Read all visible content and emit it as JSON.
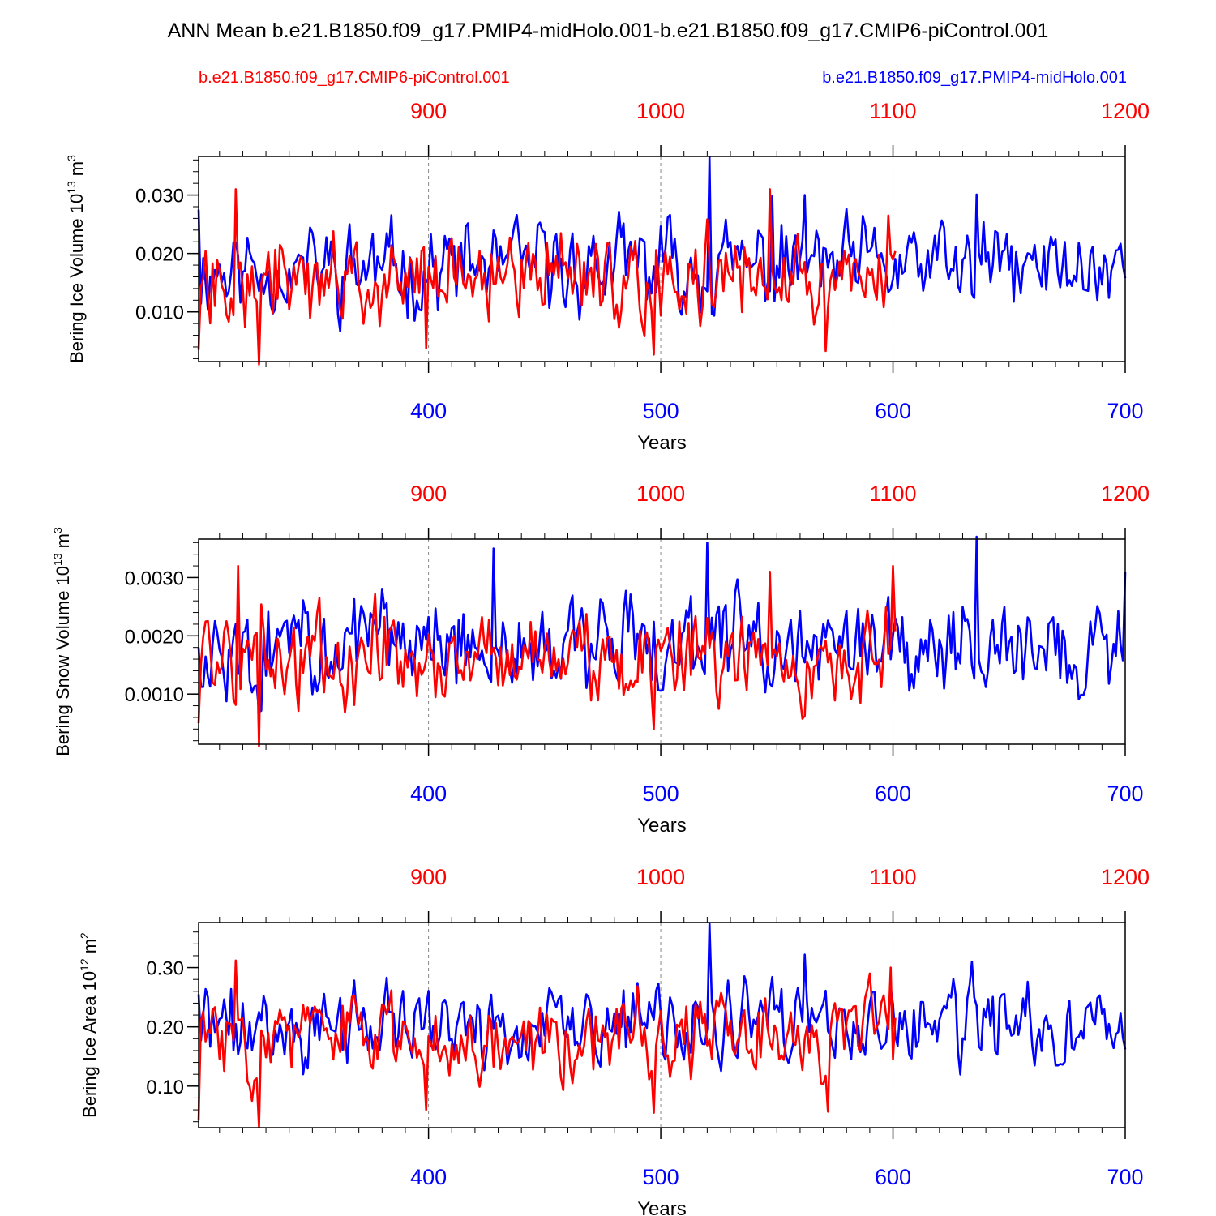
{
  "title": "ANN Mean b.e21.B1850.f09_g17.PMIP4-midHolo.001-b.e21.B1850.f09_g17.CMIP6-piControl.001",
  "legend": {
    "red_case": "b.e21.B1850.f09_g17.CMIP6-piControl.001",
    "blue_case": "b.e21.B1850.f09_g17.PMIP4-midHolo.001"
  },
  "colors": {
    "red": "#ff0000",
    "blue": "#0000ff",
    "axis": "#000000",
    "grid": "#888888"
  },
  "chart_data": [
    {
      "type": "line",
      "ylabel_main": "Bering Ice Volume 10",
      "ylabel_exp": "13",
      "ylabel_unit": "m",
      "ylabel_unit_exp": "3",
      "xlabel": "Years",
      "ylim": [
        0.0015,
        0.0366
      ],
      "yticks": [
        "0.010",
        "0.020",
        "0.030"
      ],
      "ytick_values": [
        0.01,
        0.02,
        0.03
      ],
      "minor_step": 0.002,
      "bottom_x_range": [
        301,
        700
      ],
      "bottom_ticks": [
        "400",
        "500",
        "600",
        "700"
      ],
      "top_ticks": [
        "900",
        "1000",
        "1100",
        "1200"
      ],
      "series": [
        {
          "name": "b.e21.B1850.f09_g17.PMIP4-midHolo.001",
          "color": "blue",
          "x_start": 301,
          "x_end": 700,
          "seed": 11,
          "mean": 0.0175,
          "amp": 0.01,
          "min": 0.005,
          "max": 0.03,
          "peaks": [
            [
              301,
              0.0275
            ],
            [
              521,
              0.0365
            ],
            [
              548,
              0.0298
            ],
            [
              562,
              0.03
            ],
            [
              636,
              0.0301
            ]
          ]
        },
        {
          "name": "b.e21.B1850.f09_g17.CMIP6-piControl.001",
          "color": "red",
          "x_start": 301,
          "x_end": 601,
          "seed": 27,
          "mean": 0.016,
          "amp": 0.01,
          "min": 0.0045,
          "max": 0.0275,
          "peaks": [
            [
              301,
              0.0035
            ],
            [
              317,
              0.031
            ],
            [
              327,
              0.001
            ],
            [
              399,
              0.0038
            ],
            [
              497,
              0.0027
            ],
            [
              547,
              0.031
            ],
            [
              571,
              0.0033
            ],
            [
              598,
              0.0265
            ]
          ]
        }
      ]
    },
    {
      "type": "line",
      "ylabel_main": "Bering Snow Volume 10",
      "ylabel_exp": "13",
      "ylabel_unit": "m",
      "ylabel_unit_exp": "3",
      "xlabel": "Years",
      "ylim": [
        0.00014,
        0.00366
      ],
      "yticks": [
        "0.0010",
        "0.0020",
        "0.0030"
      ],
      "ytick_values": [
        0.001,
        0.002,
        0.003
      ],
      "minor_step": 0.0002,
      "bottom_x_range": [
        301,
        700
      ],
      "bottom_ticks": [
        "400",
        "500",
        "600",
        "700"
      ],
      "top_ticks": [
        "900",
        "1000",
        "1100",
        "1200"
      ],
      "series": [
        {
          "name": "b.e21.B1850.f09_g17.PMIP4-midHolo.001",
          "color": "blue",
          "x_start": 301,
          "x_end": 700,
          "seed": 43,
          "mean": 0.0018,
          "amp": 0.0011,
          "min": 0.0005,
          "max": 0.0032,
          "peaks": [
            [
              301,
              0.0018
            ],
            [
              428,
              0.0035
            ],
            [
              520,
              0.0036
            ],
            [
              636,
              0.0037
            ],
            [
              700,
              0.0031
            ]
          ]
        },
        {
          "name": "b.e21.B1850.f09_g17.CMIP6-piControl.001",
          "color": "red",
          "x_start": 301,
          "x_end": 601,
          "seed": 59,
          "mean": 0.0017,
          "amp": 0.001,
          "min": 0.0005,
          "max": 0.003,
          "peaks": [
            [
              301,
              0.0005
            ],
            [
              318,
              0.0032
            ],
            [
              327,
              0.0001
            ],
            [
              497,
              0.0004
            ],
            [
              547,
              0.0031
            ],
            [
              600,
              0.0032
            ]
          ]
        }
      ]
    },
    {
      "type": "line",
      "ylabel_main": "Bering Ice Area 10",
      "ylabel_exp": "12",
      "ylabel_unit": "m",
      "ylabel_unit_exp": "2",
      "xlabel": "Years",
      "ylim": [
        0.03,
        0.376
      ],
      "yticks": [
        "0.10",
        "0.20",
        "0.30"
      ],
      "ytick_values": [
        0.1,
        0.2,
        0.3
      ],
      "minor_step": 0.02,
      "bottom_x_range": [
        301,
        700
      ],
      "bottom_ticks": [
        "400",
        "500",
        "600",
        "700"
      ],
      "top_ticks": [
        "900",
        "1000",
        "1100",
        "1200"
      ],
      "series": [
        {
          "name": "b.e21.B1850.f09_g17.PMIP4-midHolo.001",
          "color": "blue",
          "x_start": 301,
          "x_end": 700,
          "seed": 71,
          "mean": 0.2,
          "amp": 0.09,
          "min": 0.085,
          "max": 0.32,
          "peaks": [
            [
              301,
              0.255
            ],
            [
              521,
              0.375
            ],
            [
              562,
              0.322
            ],
            [
              634,
              0.31
            ]
          ]
        },
        {
          "name": "b.e21.B1850.f09_g17.CMIP6-piControl.001",
          "color": "red",
          "x_start": 301,
          "x_end": 601,
          "seed": 83,
          "mean": 0.185,
          "amp": 0.09,
          "min": 0.06,
          "max": 0.29,
          "peaks": [
            [
              301,
              0.042
            ],
            [
              317,
              0.312
            ],
            [
              327,
              0.03
            ],
            [
              399,
              0.06
            ],
            [
              497,
              0.055
            ],
            [
              572,
              0.057
            ],
            [
              599,
              0.3
            ]
          ]
        }
      ]
    }
  ]
}
